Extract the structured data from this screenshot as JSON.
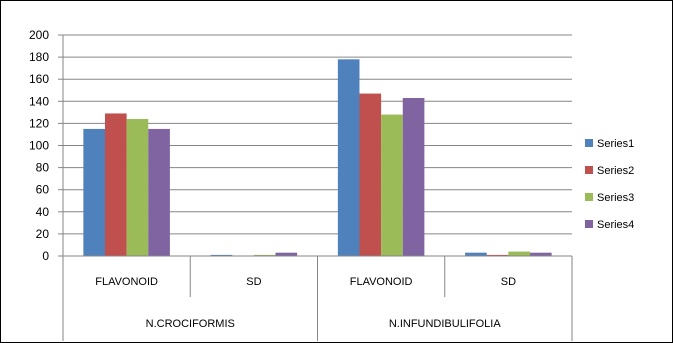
{
  "chart_data": {
    "type": "bar",
    "title": "",
    "xlabel": "",
    "ylabel": "",
    "ylim": [
      0,
      200
    ],
    "ytick_step": 20,
    "grid": true,
    "legend_position": "right",
    "groups": [
      {
        "label": "N.CROCIFORMIS",
        "categories": [
          "FLAVONOID",
          "SD"
        ]
      },
      {
        "label": "N.INFUNDIBULIFOLIA",
        "categories": [
          "FLAVONOID",
          "SD"
        ]
      }
    ],
    "series": [
      {
        "name": "Series1",
        "color": "#4F81BD",
        "values": [
          115,
          1,
          178,
          3
        ]
      },
      {
        "name": "Series2",
        "color": "#C0504D",
        "values": [
          129,
          0,
          147,
          1
        ]
      },
      {
        "name": "Series3",
        "color": "#9BBB59",
        "values": [
          124,
          1,
          128,
          4
        ]
      },
      {
        "name": "Series4",
        "color": "#8064A2",
        "values": [
          115,
          3,
          143,
          3
        ]
      }
    ]
  }
}
